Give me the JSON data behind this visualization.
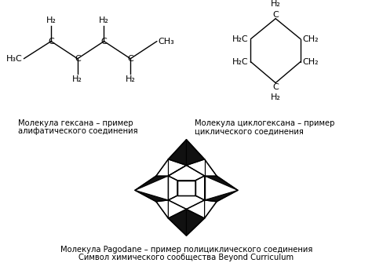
{
  "bg_color": "#ffffff",
  "text_color": "#000000",
  "label1_line1": "Молекула гексана – пример",
  "label1_line2": "алифатического соединения",
  "label2_line1": "Молекула циклогексана – пример",
  "label2_line2": "циклического соединения",
  "label3_line1": "Молекула Pagodane – пример полициклического соединения",
  "label3_line2": "Символ химического сообщества Beyond Curriculum",
  "font_size_mol": 8.0,
  "font_size_label": 7.2
}
